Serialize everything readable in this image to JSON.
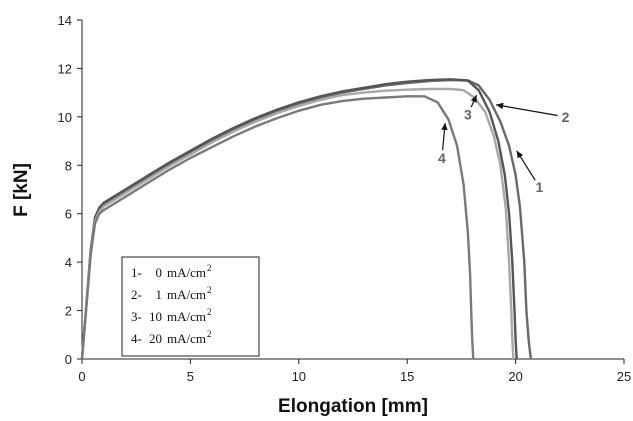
{
  "chart_data": {
    "type": "line",
    "xlabel": "Elongation [mm]",
    "ylabel": "F [kN]",
    "xlim": [
      0,
      25
    ],
    "ylim": [
      0,
      14
    ],
    "xticks": [
      0,
      5,
      10,
      15,
      20,
      25
    ],
    "yticks": [
      0,
      2,
      4,
      6,
      8,
      10,
      12,
      14
    ],
    "grid": false,
    "legend_position": "lower-left",
    "legend": [
      {
        "num": "1-",
        "value": "0",
        "unit": "mA/cm",
        "sup": "2"
      },
      {
        "num": "2-",
        "value": "1",
        "unit": "mA/cm",
        "sup": "2"
      },
      {
        "num": "3-",
        "value": "10",
        "unit": "mA/cm",
        "sup": "2"
      },
      {
        "num": "4-",
        "value": "20",
        "unit": "mA/cm",
        "sup": "2"
      }
    ],
    "series": [
      {
        "label": "1",
        "color": "#6a6a6a",
        "x": [
          0,
          0.2,
          0.4,
          0.6,
          0.8,
          1,
          2,
          3,
          4,
          5,
          6,
          7,
          8,
          9,
          10,
          11,
          12,
          13,
          14,
          15,
          16,
          17,
          17.8,
          18.3,
          18.8,
          19.3,
          19.7,
          20,
          20.2,
          20.4,
          20.5,
          20.6,
          20.7
        ],
        "y": [
          0,
          2.2,
          4.5,
          5.8,
          6.2,
          6.4,
          6.95,
          7.5,
          8.05,
          8.55,
          9.05,
          9.5,
          9.9,
          10.25,
          10.55,
          10.8,
          11.0,
          11.15,
          11.3,
          11.4,
          11.48,
          11.52,
          11.5,
          11.3,
          10.7,
          9.8,
          8.8,
          7.6,
          6.3,
          4,
          2,
          0.8,
          0
        ]
      },
      {
        "label": "2",
        "color": "#555555",
        "x": [
          0,
          0.2,
          0.4,
          0.6,
          0.8,
          1,
          2,
          3,
          4,
          5,
          6,
          7,
          8,
          9,
          10,
          11,
          12,
          13,
          14,
          15,
          16,
          17,
          17.8,
          18.3,
          18.8,
          19.2,
          19.5,
          19.7,
          19.85,
          19.95,
          20.0,
          20.05
        ],
        "y": [
          0,
          2.2,
          4.5,
          5.85,
          6.25,
          6.45,
          7.0,
          7.55,
          8.1,
          8.6,
          9.1,
          9.55,
          9.95,
          10.3,
          10.6,
          10.85,
          11.05,
          11.2,
          11.35,
          11.45,
          11.52,
          11.55,
          11.5,
          11.1,
          10.2,
          9,
          7.6,
          6,
          4,
          2,
          0.8,
          0
        ]
      },
      {
        "label": "3",
        "color": "#a8a8a8",
        "x": [
          0,
          0.2,
          0.4,
          0.6,
          0.8,
          1,
          2,
          3,
          4,
          5,
          6,
          7,
          8,
          9,
          10,
          11,
          12,
          13,
          14,
          15,
          16,
          17,
          17.6,
          18.1,
          18.6,
          19.0,
          19.3,
          19.55,
          19.7,
          19.8,
          19.85,
          19.9
        ],
        "y": [
          0,
          2.2,
          4.4,
          5.7,
          6.1,
          6.3,
          6.85,
          7.4,
          7.95,
          8.45,
          8.95,
          9.4,
          9.8,
          10.15,
          10.45,
          10.7,
          10.9,
          11.0,
          11.08,
          11.12,
          11.15,
          11.15,
          11.1,
          10.8,
          10.2,
          9.2,
          8,
          6.2,
          4,
          2,
          0.8,
          0
        ]
      },
      {
        "label": "4",
        "color": "#7a7a7a",
        "x": [
          0,
          0.2,
          0.4,
          0.6,
          0.8,
          1,
          2,
          3,
          4,
          5,
          6,
          7,
          8,
          9,
          10,
          11,
          12,
          13,
          14,
          15,
          15.8,
          16.4,
          16.9,
          17.3,
          17.6,
          17.8,
          17.9,
          17.95,
          18.0,
          18.05
        ],
        "y": [
          0,
          2.1,
          4.3,
          5.6,
          6.0,
          6.15,
          6.7,
          7.25,
          7.8,
          8.3,
          8.75,
          9.2,
          9.6,
          9.95,
          10.25,
          10.5,
          10.65,
          10.75,
          10.8,
          10.85,
          10.85,
          10.6,
          9.9,
          8.8,
          7.2,
          5.2,
          3.5,
          2,
          0.8,
          0
        ]
      }
    ],
    "annotations": [
      {
        "text": "1",
        "label_x": 21.1,
        "label_y": 7.1,
        "tip_x": 20.05,
        "tip_y": 8.6
      },
      {
        "text": "2",
        "label_x": 22.3,
        "label_y": 10.0,
        "tip_x": 19.1,
        "tip_y": 10.5
      },
      {
        "text": "3",
        "label_x": 17.8,
        "label_y": 10.1,
        "tip_x": 18.2,
        "tip_y": 10.9
      },
      {
        "text": "4",
        "label_x": 16.6,
        "label_y": 8.3,
        "tip_x": 16.75,
        "tip_y": 9.75
      }
    ]
  }
}
